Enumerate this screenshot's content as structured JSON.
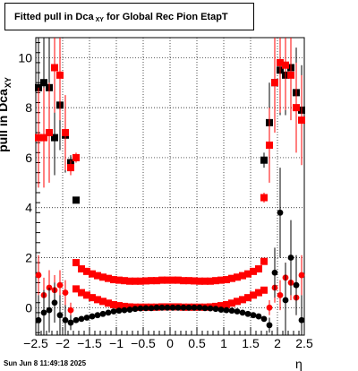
{
  "title": {
    "main": "Fitted pull in Dca",
    "sub": "XY",
    "rest": "for Global Rec Pion EtapT"
  },
  "footer": {
    "timestamp": "Sun Jun  8 11:49:18 2025"
  },
  "axes": {
    "xlabel": "η",
    "ylabel_main": "pull in Dca",
    "ylabel_sub": "XY"
  },
  "colors": {
    "black_series": "#000000",
    "red_series": "#ff0000",
    "grid": "#000000"
  },
  "chart_data": {
    "type": "scatter",
    "title": "Fitted pull in Dca_XY for Global Rec Pion EtapT",
    "xlabel": "η",
    "ylabel": "pull in Dca_XY",
    "xlim": [
      -2.5,
      2.5
    ],
    "ylim": [
      -1.1,
      10.8
    ],
    "xticks": [
      -2.5,
      -2,
      -1.5,
      -1,
      -0.5,
      0,
      0.5,
      1,
      1.5,
      2,
      2.5
    ],
    "xtick_labels": [
      "−2.5",
      "−2",
      "−1.5",
      "−1",
      "−0.5",
      "0",
      "0.5",
      "1",
      "1.5",
      "2",
      "2.5"
    ],
    "yticks": [
      0,
      2,
      4,
      6,
      8,
      10
    ],
    "ytick_labels": [
      "0",
      "2",
      "4",
      "6",
      "8",
      "10"
    ],
    "grid": true,
    "series": [
      {
        "color": "#000000",
        "marker": "square",
        "x": [
          -2.45,
          -2.35,
          -2.25,
          -2.15,
          -2.05,
          -1.95,
          -1.85,
          -1.75,
          1.75,
          1.85,
          1.95,
          2.05,
          2.15,
          2.25,
          2.35,
          2.45
        ],
        "y": [
          8.8,
          9.0,
          8.8,
          6.8,
          8.1,
          6.9,
          5.8,
          4.3,
          5.9,
          7.4,
          9.0,
          9.5,
          9.3,
          9.6,
          8.6,
          7.9
        ],
        "err": [
          2.2,
          2.0,
          2.0,
          1.5,
          1.8,
          1.5,
          0.3,
          0.1,
          0.3,
          1.6,
          1.8,
          1.8,
          1.6,
          1.8,
          1.8,
          1.8
        ]
      },
      {
        "color": "#ff0000",
        "marker": "square",
        "x": [
          -2.45,
          -2.35,
          -2.25,
          -2.15,
          -2.05,
          -1.95,
          -1.85,
          -1.75,
          1.75,
          1.85,
          1.95,
          2.05,
          2.15,
          2.25,
          2.35,
          2.45
        ],
        "y": [
          6.8,
          6.8,
          7.0,
          9.6,
          9.3,
          7.0,
          5.6,
          6.0,
          4.4,
          6.5,
          9.0,
          9.8,
          9.7,
          9.3,
          8.0,
          7.5
        ],
        "err": [
          2.0,
          2.0,
          2.0,
          1.8,
          1.8,
          1.5,
          0.3,
          0.2,
          0.2,
          1.5,
          2.0,
          2.0,
          1.8,
          1.8,
          1.8,
          1.8
        ]
      },
      {
        "color": "#ff0000",
        "marker": "square",
        "x": [
          -1.75,
          -1.65,
          -1.55,
          -1.45,
          -1.35,
          -1.25,
          -1.15,
          -1.05,
          -0.95,
          -0.85,
          -0.75,
          -0.65,
          -0.55,
          -0.45,
          -0.35,
          -0.25,
          -0.15,
          -0.05,
          0.05,
          0.15,
          0.25,
          0.35,
          0.45,
          0.55,
          0.65,
          0.75,
          0.85,
          0.95,
          1.05,
          1.15,
          1.25,
          1.35,
          1.45,
          1.55,
          1.65,
          1.75
        ],
        "y": [
          1.8,
          1.55,
          1.45,
          1.35,
          1.28,
          1.22,
          1.17,
          1.12,
          1.1,
          1.08,
          1.06,
          1.06,
          1.06,
          1.07,
          1.08,
          1.08,
          1.1,
          1.1,
          1.1,
          1.1,
          1.08,
          1.08,
          1.07,
          1.06,
          1.06,
          1.06,
          1.08,
          1.1,
          1.12,
          1.17,
          1.22,
          1.28,
          1.35,
          1.45,
          1.55,
          1.85
        ],
        "err": []
      },
      {
        "color": "#ff0000",
        "marker": "square",
        "x": [
          -1.75,
          -1.65,
          -1.55,
          -1.45,
          -1.35,
          -1.25,
          -1.15,
          -1.05,
          -0.95,
          -0.85,
          -0.75,
          -0.65,
          -0.55,
          -0.45,
          -0.35,
          -0.25,
          -0.15,
          -0.05,
          0.05,
          0.15,
          0.25,
          0.35,
          0.45,
          0.55,
          0.65,
          0.75,
          0.85,
          0.95,
          1.05,
          1.15,
          1.25,
          1.35,
          1.45,
          1.55,
          1.65,
          1.75
        ],
        "y": [
          0.75,
          0.6,
          0.5,
          0.4,
          0.32,
          0.25,
          0.18,
          0.12,
          0.08,
          0.05,
          0.03,
          0.02,
          0.02,
          0.02,
          0.02,
          0.02,
          0.03,
          0.03,
          0.03,
          0.03,
          0.02,
          0.02,
          0.02,
          0.02,
          0.02,
          0.03,
          0.05,
          0.08,
          0.12,
          0.18,
          0.25,
          0.32,
          0.4,
          0.5,
          0.6,
          0.7
        ],
        "err": []
      },
      {
        "color": "#000000",
        "marker": "circle",
        "x": [
          -1.75,
          -1.65,
          -1.55,
          -1.45,
          -1.35,
          -1.25,
          -1.15,
          -1.05,
          -0.95,
          -0.85,
          -0.75,
          -0.65,
          -0.55,
          -0.45,
          -0.35,
          -0.25,
          -0.15,
          -0.05,
          0.05,
          0.15,
          0.25,
          0.35,
          0.45,
          0.55,
          0.65,
          0.75,
          0.85,
          0.95,
          1.05,
          1.15,
          1.25,
          1.35,
          1.45,
          1.55,
          1.65,
          1.75
        ],
        "y": [
          -0.5,
          -0.45,
          -0.4,
          -0.35,
          -0.3,
          -0.25,
          -0.2,
          -0.15,
          -0.12,
          -0.1,
          -0.08,
          -0.05,
          -0.03,
          -0.02,
          -0.02,
          0.0,
          0.0,
          0.0,
          0.0,
          0.0,
          0.0,
          0.0,
          0.0,
          0.0,
          -0.02,
          -0.03,
          -0.05,
          -0.08,
          -0.1,
          -0.12,
          -0.15,
          -0.2,
          -0.25,
          -0.3,
          -0.35,
          -0.45
        ],
        "err": []
      },
      {
        "color": "#ff0000",
        "marker": "circle",
        "x": [
          -2.45,
          -2.35,
          -2.25,
          -2.15,
          -2.05,
          -1.95,
          -1.85,
          1.85,
          1.95,
          2.05,
          2.15,
          2.25,
          2.35,
          2.45
        ],
        "y": [
          1.3,
          0.5,
          0.8,
          0.7,
          0.9,
          0.6,
          -0.1,
          0.0,
          0.8,
          0.5,
          1.2,
          1.0,
          0.4,
          1.3
        ],
        "err": [
          0.8,
          0.7,
          0.7,
          0.6,
          0.6,
          0.5,
          0.3,
          0.3,
          0.6,
          0.6,
          0.6,
          0.7,
          0.7,
          0.8
        ]
      },
      {
        "color": "#000000",
        "marker": "circle",
        "x": [
          -2.45,
          -2.35,
          -2.25,
          -2.15,
          -2.05,
          -1.95,
          -1.85,
          1.85,
          1.95,
          2.05,
          2.15,
          2.25,
          2.35,
          2.45
        ],
        "y": [
          -0.5,
          -0.2,
          -0.1,
          0.2,
          -0.3,
          -0.5,
          -0.6,
          -0.7,
          1.4,
          3.8,
          0.3,
          2.0,
          0.9,
          -0.5
        ],
        "err": [
          1.0,
          0.9,
          0.9,
          0.8,
          0.8,
          0.6,
          0.3,
          0.3,
          1.0,
          1.8,
          1.5,
          1.5,
          1.2,
          1.0
        ]
      }
    ]
  }
}
